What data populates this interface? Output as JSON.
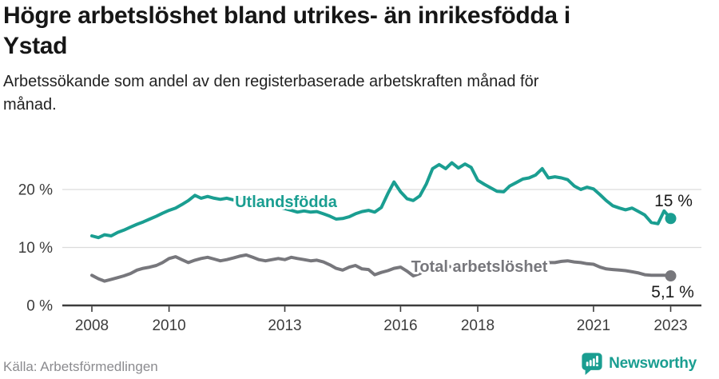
{
  "header": {
    "title": "Högre arbetslöshet bland utrikes- än inrikesfödda i\nYstad",
    "subtitle": "Arbetssökande som andel av den registerbaserade arbetskraften månad för\nmånad."
  },
  "footer": {
    "source": "Källa: Arbetsförmedlingen",
    "brand": "Newsworthy"
  },
  "colors": {
    "accent_teal": "#1a9e91",
    "series_gray": "#77777c",
    "gridline": "#dcdcdc",
    "axis": "#3c3c3c",
    "value_label": "#1a1a1a"
  },
  "chart_data": {
    "type": "line",
    "unit": "%",
    "grid": "horizontal",
    "legend_position": "inline-labels",
    "ylim": [
      0,
      27
    ],
    "xlim": [
      2007.2,
      2023.8
    ],
    "yticks": [
      {
        "value": 0,
        "label": "0 %"
      },
      {
        "value": 10,
        "label": "10 %"
      },
      {
        "value": 20,
        "label": "20 %"
      }
    ],
    "xticks": [
      {
        "value": 2008,
        "label": "2008"
      },
      {
        "value": 2010,
        "label": "2010"
      },
      {
        "value": 2013,
        "label": "2013"
      },
      {
        "value": 2016,
        "label": "2016"
      },
      {
        "value": 2018,
        "label": "2018"
      },
      {
        "value": 2021,
        "label": "2021"
      },
      {
        "value": 2023,
        "label": "2023"
      }
    ],
    "x": [
      2008,
      2008.17,
      2008.33,
      2008.5,
      2008.67,
      2008.83,
      2009,
      2009.17,
      2009.33,
      2009.5,
      2009.67,
      2009.83,
      2010,
      2010.17,
      2010.33,
      2010.5,
      2010.67,
      2010.83,
      2011,
      2011.17,
      2011.33,
      2011.5,
      2011.67,
      2011.83,
      2012,
      2012.17,
      2012.33,
      2012.5,
      2012.67,
      2012.83,
      2013,
      2013.17,
      2013.33,
      2013.5,
      2013.67,
      2013.83,
      2014,
      2014.17,
      2014.33,
      2014.5,
      2014.67,
      2014.83,
      2015,
      2015.17,
      2015.33,
      2015.5,
      2015.67,
      2015.83,
      2016,
      2016.17,
      2016.33,
      2016.5,
      2016.67,
      2016.83,
      2017,
      2017.17,
      2017.33,
      2017.5,
      2017.67,
      2017.83,
      2018,
      2018.17,
      2018.33,
      2018.5,
      2018.67,
      2018.83,
      2019,
      2019.17,
      2019.33,
      2019.5,
      2019.67,
      2019.83,
      2020,
      2020.17,
      2020.33,
      2020.5,
      2020.67,
      2020.83,
      2021,
      2021.17,
      2021.33,
      2021.5,
      2021.67,
      2021.83,
      2022,
      2022.17,
      2022.33,
      2022.5,
      2022.67,
      2022.83,
      2023
    ],
    "series": [
      {
        "name": "Utlandsfödda",
        "slug": "utlandsfodda",
        "color": "#1a9e91",
        "end_label": "15 %",
        "end_value": 15.0,
        "values": [
          12.0,
          11.7,
          12.2,
          12.0,
          12.6,
          13.0,
          13.5,
          14.0,
          14.4,
          14.9,
          15.4,
          15.9,
          16.4,
          16.8,
          17.4,
          18.1,
          19.0,
          18.5,
          18.8,
          18.5,
          18.3,
          18.5,
          18.2,
          18.4,
          18.6,
          18.3,
          18.0,
          17.7,
          17.3,
          17.0,
          16.7,
          16.4,
          16.1,
          16.3,
          16.1,
          16.2,
          15.8,
          15.4,
          14.9,
          15.0,
          15.3,
          15.8,
          16.2,
          16.4,
          16.1,
          16.9,
          19.3,
          21.3,
          19.6,
          18.4,
          18.1,
          18.9,
          21.0,
          23.6,
          24.3,
          23.6,
          24.6,
          23.7,
          24.4,
          23.8,
          21.6,
          20.9,
          20.3,
          19.7,
          19.6,
          20.6,
          21.2,
          21.8,
          22.0,
          22.5,
          23.6,
          22.0,
          22.2,
          22.0,
          21.7,
          20.6,
          20.0,
          20.4,
          20.1,
          19.1,
          18.1,
          17.2,
          16.8,
          16.5,
          16.8,
          16.2,
          15.6,
          14.3,
          14.1,
          16.3,
          15.0
        ]
      },
      {
        "name": "Total arbetslöshet",
        "slug": "total-arbetsloshet",
        "color": "#77777c",
        "end_label": "5,1 %",
        "end_value": 5.1,
        "values": [
          5.2,
          4.6,
          4.2,
          4.5,
          4.8,
          5.1,
          5.5,
          6.1,
          6.4,
          6.6,
          6.9,
          7.4,
          8.1,
          8.4,
          7.9,
          7.4,
          7.8,
          8.1,
          8.3,
          8.0,
          7.7,
          7.9,
          8.2,
          8.5,
          8.7,
          8.3,
          7.9,
          7.7,
          7.9,
          8.1,
          7.9,
          8.3,
          8.1,
          7.9,
          7.7,
          7.8,
          7.5,
          7.0,
          6.4,
          6.1,
          6.6,
          6.9,
          6.3,
          6.2,
          5.3,
          5.7,
          6.0,
          6.4,
          6.6,
          5.9,
          5.1,
          5.5,
          6.3,
          6.9,
          7.1,
          6.9,
          6.6,
          6.8,
          7.0,
          7.2,
          7.1,
          6.9,
          6.7,
          6.6,
          6.8,
          7.0,
          7.0,
          6.8,
          6.9,
          7.1,
          7.3,
          7.4,
          7.4,
          7.6,
          7.7,
          7.5,
          7.4,
          7.2,
          7.1,
          6.6,
          6.3,
          6.2,
          6.1,
          6.0,
          5.8,
          5.6,
          5.3,
          5.2,
          5.2,
          5.2,
          5.1
        ]
      }
    ]
  }
}
